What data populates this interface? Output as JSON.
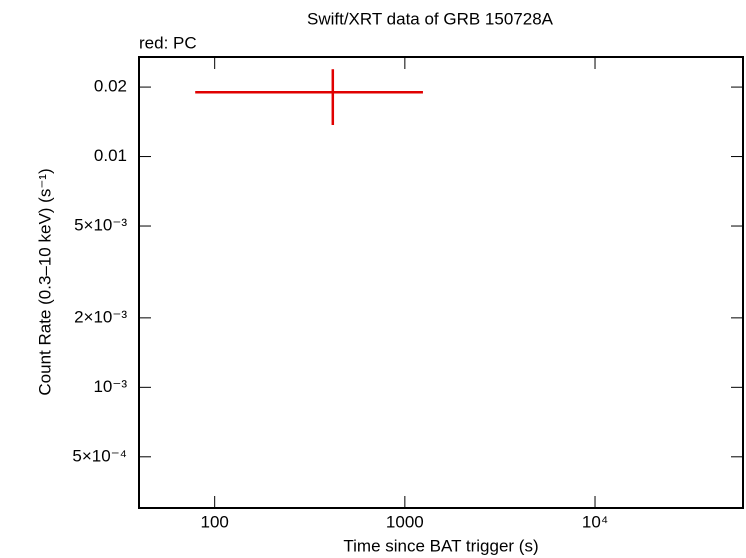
{
  "chart_data": {
    "type": "scatter",
    "title": "Swift/XRT data of GRB 150728A",
    "subtitle": "red: PC",
    "x_label": "Time since BAT trigger (s)",
    "y_label": "Count Rate (0.3–10 keV) (s⁻¹)",
    "x_log": true,
    "y_log": true,
    "xlim": [
      40,
      60000
    ],
    "ylim": [
      0.0003,
      0.027
    ],
    "xticks": [
      100,
      1000,
      {
        "value": 10000,
        "label": "10⁴"
      }
    ],
    "yticks": [
      {
        "value": 0.0005,
        "label": "5×10⁻⁴"
      },
      {
        "value": 0.001,
        "label": "10⁻³"
      },
      {
        "value": 0.002,
        "label": "2×10⁻³"
      },
      {
        "value": 0.005,
        "label": "5×10⁻³"
      },
      0.01,
      0.02
    ],
    "series": [
      {
        "name": "PC",
        "color": "#e00000",
        "x": [
          418
        ],
        "xerr_minus": [
          339
        ],
        "xerr_plus": [
          827
        ],
        "values": [
          0.019
        ],
        "yerr_minus": [
          0.0053
        ],
        "yerr_plus": [
          0.0049
        ]
      }
    ]
  }
}
